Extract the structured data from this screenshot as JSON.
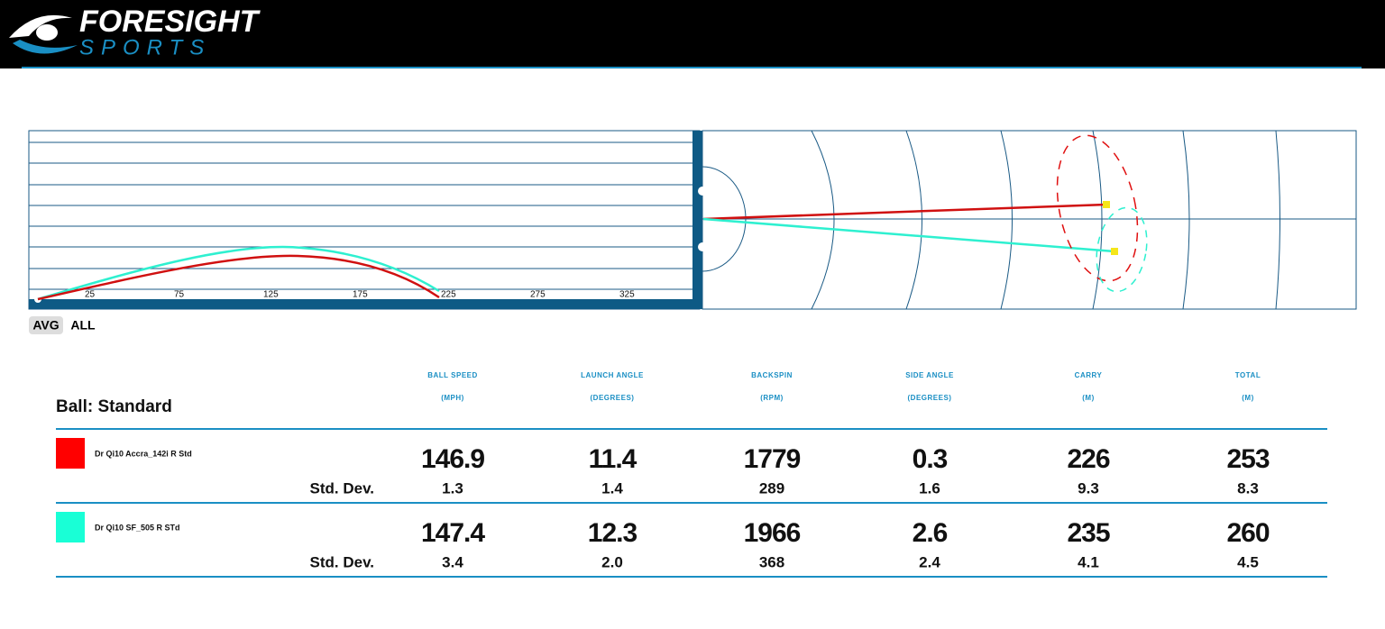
{
  "header": {
    "brand": "FORESIGHT",
    "sub_brand": "SPORTS"
  },
  "side_view": {
    "x_labels": [
      "25",
      "75",
      "125",
      "175",
      "225",
      "275",
      "325"
    ]
  },
  "view_toggle": [
    "AVG",
    "ALL"
  ],
  "table": {
    "ball": "Ball: Standard",
    "columns": [
      {
        "name": "BALL SPEED",
        "unit": "(MPH)"
      },
      {
        "name": "LAUNCH ANGLE",
        "unit": "(DEGREES)"
      },
      {
        "name": "BACKSPIN",
        "unit": "(RPM)"
      },
      {
        "name": "SIDE ANGLE",
        "unit": "(DEGREES)"
      },
      {
        "name": "CARRY",
        "unit": "(M)"
      },
      {
        "name": "TOTAL",
        "unit": "(M)"
      }
    ],
    "rows": [
      {
        "club": "Dr Qi10 Accra_142i R Std",
        "color": "#ff0000",
        "values": [
          "146.9",
          "11.4",
          "1779",
          "0.3",
          "226",
          "253"
        ],
        "std_label": "Std. Dev.",
        "std": [
          "1.3",
          "1.4",
          "289",
          "1.6",
          "9.3",
          "8.3"
        ]
      },
      {
        "club": "Dr Qi10 SF_505 R STd",
        "color": "#19ffd6",
        "values": [
          "147.4",
          "12.3",
          "1966",
          "2.6",
          "235",
          "260"
        ],
        "std_label": "Std. Dev.",
        "std": [
          "3.4",
          "2.0",
          "368",
          "2.4",
          "4.1",
          "4.5"
        ]
      }
    ]
  }
}
